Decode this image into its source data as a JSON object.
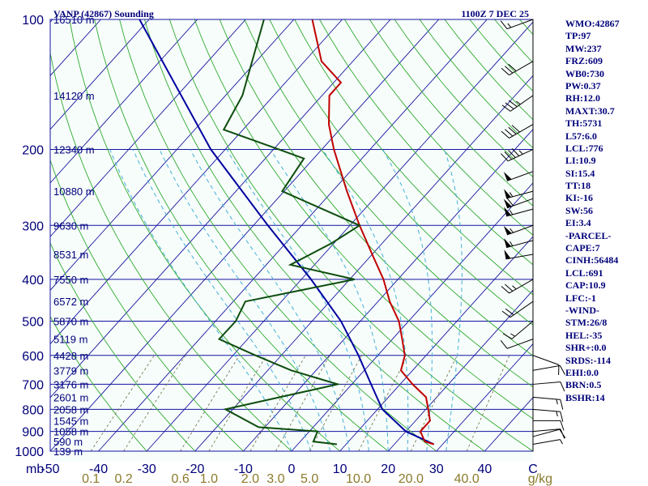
{
  "header": {
    "station": "VANP (42867) Sounding",
    "time": "1100Z  7 DEC 25"
  },
  "indices": [
    "WMO:42867",
    "TP:97",
    "MW:237",
    "FRZ:609",
    "WB0:730",
    "PW:0.37",
    "RH:12.0",
    "MAXT:30.7",
    "TH:5731",
    "L57:6.0",
    "LCL:776",
    "LI:10.9",
    "SI:15.4",
    "TT:18",
    "KI:-16",
    "SW:56",
    "EI:3.4",
    "-PARCEL-",
    "CAPE:7",
    "CINH:56484",
    "LCL:691",
    "CAP:10.9",
    "LFC:-1",
    "-WIND-",
    "STM:26/8",
    "HEL:-35",
    "SHR+:0.0",
    "SRDS:-114",
    "EHI:0.0",
    "BRN:0.5",
    "BSHR:14"
  ],
  "colors": {
    "background": "#f7fdfb",
    "isobar": "#1414a0",
    "isotherm": "#1414a0",
    "dry_adiabat": "#2faa2f",
    "moist_adiabat": "#45b0d8",
    "mixing_ratio": "#6a6a40",
    "temperature": "#c00000",
    "dewpoint": "#0d4d0d",
    "parcel": "#0000a0",
    "wind": "#000000"
  },
  "chart_data": {
    "type": "skew-T log-P sounding",
    "title": "VANP (42867) Sounding",
    "valid_time": "1100Z  7 DEC 25",
    "x_units": "°C (skewed)",
    "y_units": "mb (log scale)",
    "ylim": [
      1000,
      100
    ],
    "xlim_at_1000mb": [
      -50,
      50
    ],
    "y_ticks": [
      100,
      200,
      300,
      400,
      500,
      600,
      700,
      800,
      900,
      1000
    ],
    "y_unit_label": "mb",
    "x_ticks": [
      -50,
      -40,
      -30,
      -20,
      -10,
      0,
      10,
      20,
      30,
      40,
      50
    ],
    "x_tick_labels": [
      "-50",
      "-40",
      "-30",
      "-20",
      "-10",
      "0",
      "10",
      "20",
      "30",
      "40",
      "C"
    ],
    "mixing_ratio_lines": [
      0.1,
      0.2,
      0.6,
      1.0,
      2.0,
      3.0,
      5.0,
      10.0,
      20.0,
      40.0
    ],
    "mixing_ratio_labels": [
      "0.1",
      "0.2",
      "0.6",
      "1.0",
      "2.0",
      "3.0",
      "5.0",
      "10.0",
      "20.0",
      "40.0"
    ],
    "mixing_ratio_unit": "g/kg",
    "heights": [
      {
        "p": 100,
        "label": "16510 m"
      },
      {
        "p": 150,
        "label": "14120 m"
      },
      {
        "p": 200,
        "label": "12340 m"
      },
      {
        "p": 250,
        "label": "10880 m"
      },
      {
        "p": 300,
        "label": "9630 m"
      },
      {
        "p": 350,
        "label": "8531 m"
      },
      {
        "p": 400,
        "label": "7550 m"
      },
      {
        "p": 450,
        "label": "6572 m"
      },
      {
        "p": 500,
        "label": "5870 m"
      },
      {
        "p": 550,
        "label": "5119 m"
      },
      {
        "p": 600,
        "label": "4428 m"
      },
      {
        "p": 650,
        "label": "3779 m"
      },
      {
        "p": 700,
        "label": "3176 m"
      },
      {
        "p": 750,
        "label": "2601 m"
      },
      {
        "p": 800,
        "label": "2058 m"
      },
      {
        "p": 850,
        "label": "1545 m"
      },
      {
        "p": 900,
        "label": "1058 m"
      },
      {
        "p": 950,
        "label": "590 m"
      },
      {
        "p": 1000,
        "label": "139 m"
      }
    ],
    "temperature": [
      {
        "p": 964,
        "t": 28.2
      },
      {
        "p": 950,
        "t": 25.8
      },
      {
        "p": 900,
        "t": 23.0
      },
      {
        "p": 850,
        "t": 23.0
      },
      {
        "p": 800,
        "t": 20.5
      },
      {
        "p": 750,
        "t": 17.8
      },
      {
        "p": 700,
        "t": 12.6
      },
      {
        "p": 650,
        "t": 7.6
      },
      {
        "p": 600,
        "t": 5.6
      },
      {
        "p": 550,
        "t": 2.0
      },
      {
        "p": 500,
        "t": -2.0
      },
      {
        "p": 450,
        "t": -7.6
      },
      {
        "p": 400,
        "t": -13.0
      },
      {
        "p": 350,
        "t": -20.0
      },
      {
        "p": 300,
        "t": -28.0
      },
      {
        "p": 250,
        "t": -37.0
      },
      {
        "p": 200,
        "t": -47.5
      },
      {
        "p": 175,
        "t": -53.2
      },
      {
        "p": 150,
        "t": -58.5
      },
      {
        "p": 140,
        "t": -58.5
      },
      {
        "p": 125,
        "t": -66.5
      },
      {
        "p": 100,
        "t": -76.2
      }
    ],
    "dewpoint": [
      {
        "p": 964,
        "td": 8.1
      },
      {
        "p": 950,
        "td": 2.7
      },
      {
        "p": 900,
        "td": 1.7
      },
      {
        "p": 880,
        "td": -11.3
      },
      {
        "p": 800,
        "td": -21.5
      },
      {
        "p": 700,
        "td": -2.9
      },
      {
        "p": 650,
        "td": -15.1
      },
      {
        "p": 600,
        "td": -25.3
      },
      {
        "p": 550,
        "td": -35.9
      },
      {
        "p": 500,
        "td": -35.8
      },
      {
        "p": 450,
        "td": -37.5
      },
      {
        "p": 400,
        "td": -19.0
      },
      {
        "p": 370,
        "td": -35.0
      },
      {
        "p": 330,
        "td": -30.5
      },
      {
        "p": 300,
        "td": -28.0
      },
      {
        "p": 250,
        "td": -50.4
      },
      {
        "p": 210,
        "td": -52.0
      },
      {
        "p": 200,
        "td": -58.9
      },
      {
        "p": 180,
        "td": -74.0
      },
      {
        "p": 150,
        "td": -76.5
      },
      {
        "p": 100,
        "td": -86.2
      }
    ],
    "parcel": [
      {
        "p": 964,
        "t": 28.2
      },
      {
        "p": 900,
        "t": 20.0
      },
      {
        "p": 800,
        "t": 11.0
      },
      {
        "p": 700,
        "t": 4.0
      },
      {
        "p": 600,
        "t": -4.0
      },
      {
        "p": 500,
        "t": -14.0
      },
      {
        "p": 400,
        "t": -28.0
      },
      {
        "p": 300,
        "t": -47.0
      },
      {
        "p": 200,
        "t": -73.0
      },
      {
        "p": 100,
        "t": -112.0
      }
    ],
    "wind": [
      {
        "p": 964,
        "dir": 80,
        "spd": 5
      },
      {
        "p": 925,
        "dir": 75,
        "spd": 10
      },
      {
        "p": 900,
        "dir": 85,
        "spd": 10
      },
      {
        "p": 850,
        "dir": 90,
        "spd": 10
      },
      {
        "p": 800,
        "dir": 95,
        "spd": 15
      },
      {
        "p": 750,
        "dir": 95,
        "spd": 15
      },
      {
        "p": 700,
        "dir": 85,
        "spd": 10
      },
      {
        "p": 650,
        "dir": 80,
        "spd": 10
      },
      {
        "p": 600,
        "dir": 110,
        "spd": 10
      },
      {
        "p": 550,
        "dir": 250,
        "spd": 10
      },
      {
        "p": 500,
        "dir": 230,
        "spd": 15
      },
      {
        "p": 450,
        "dir": 235,
        "spd": 20
      },
      {
        "p": 400,
        "dir": 240,
        "spd": 25
      },
      {
        "p": 350,
        "dir": 260,
        "spd": 50
      },
      {
        "p": 325,
        "dir": 255,
        "spd": 55
      },
      {
        "p": 300,
        "dir": 250,
        "spd": 55
      },
      {
        "p": 275,
        "dir": 255,
        "spd": 55
      },
      {
        "p": 260,
        "dir": 250,
        "spd": 60
      },
      {
        "p": 250,
        "dir": 255,
        "spd": 55
      },
      {
        "p": 225,
        "dir": 250,
        "spd": 50
      },
      {
        "p": 200,
        "dir": 245,
        "spd": 45
      },
      {
        "p": 175,
        "dir": 240,
        "spd": 40
      },
      {
        "p": 150,
        "dir": 235,
        "spd": 35
      },
      {
        "p": 125,
        "dir": 240,
        "spd": 30
      },
      {
        "p": 100,
        "dir": 250,
        "spd": 15
      }
    ]
  }
}
